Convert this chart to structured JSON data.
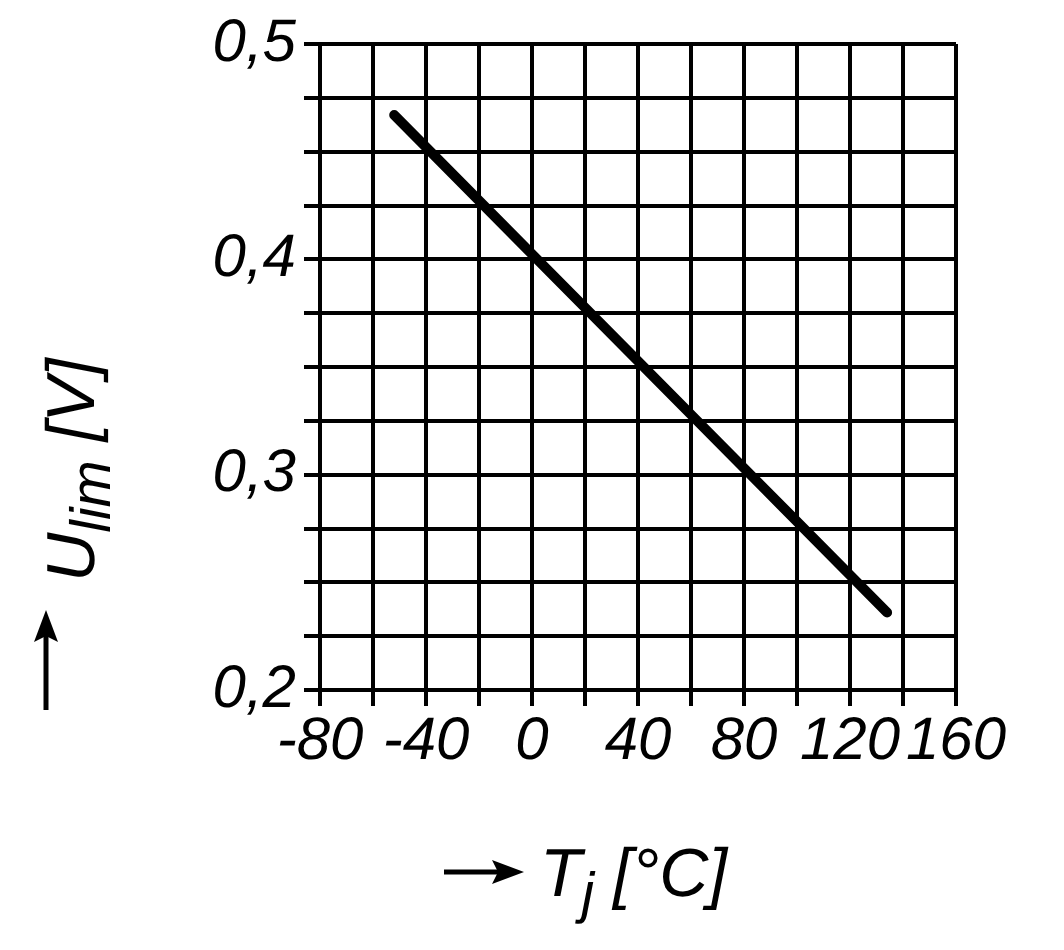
{
  "chart_data": {
    "type": "line",
    "xlabel": "T$_{j}$ [°C]",
    "ylabel": "U$_{lim}$ [V]",
    "xlim": [
      -80,
      160
    ],
    "ylim": [
      0.2,
      0.5
    ],
    "xticks": [
      -80,
      {
        "value": -60,
        "label": null
      },
      -40,
      {
        "value": -20,
        "label": null
      },
      0,
      {
        "value": 20,
        "label": null
      },
      40,
      {
        "value": 60,
        "label": null
      },
      80,
      {
        "value": 100,
        "label": null
      },
      120,
      {
        "value": 140,
        "label": null
      },
      160
    ],
    "yticks": [
      {
        "value": 0.2,
        "label": "0,2"
      },
      {
        "value": 0.225,
        "label": null
      },
      {
        "value": 0.25,
        "label": null
      },
      {
        "value": 0.275,
        "label": null
      },
      {
        "value": 0.3,
        "label": "0,3"
      },
      {
        "value": 0.325,
        "label": null
      },
      {
        "value": 0.35,
        "label": null
      },
      {
        "value": 0.375,
        "label": null
      },
      {
        "value": 0.4,
        "label": "0,4"
      },
      {
        "value": 0.425,
        "label": null
      },
      {
        "value": 0.45,
        "label": null
      },
      {
        "value": 0.475,
        "label": null
      },
      {
        "value": 0.5,
        "label": "0,5"
      }
    ],
    "grid": true,
    "marker": "none",
    "series": [
      {
        "color": "#000000",
        "x": [
          -52,
          134
        ],
        "values": [
          0.467,
          0.236
        ]
      }
    ]
  }
}
